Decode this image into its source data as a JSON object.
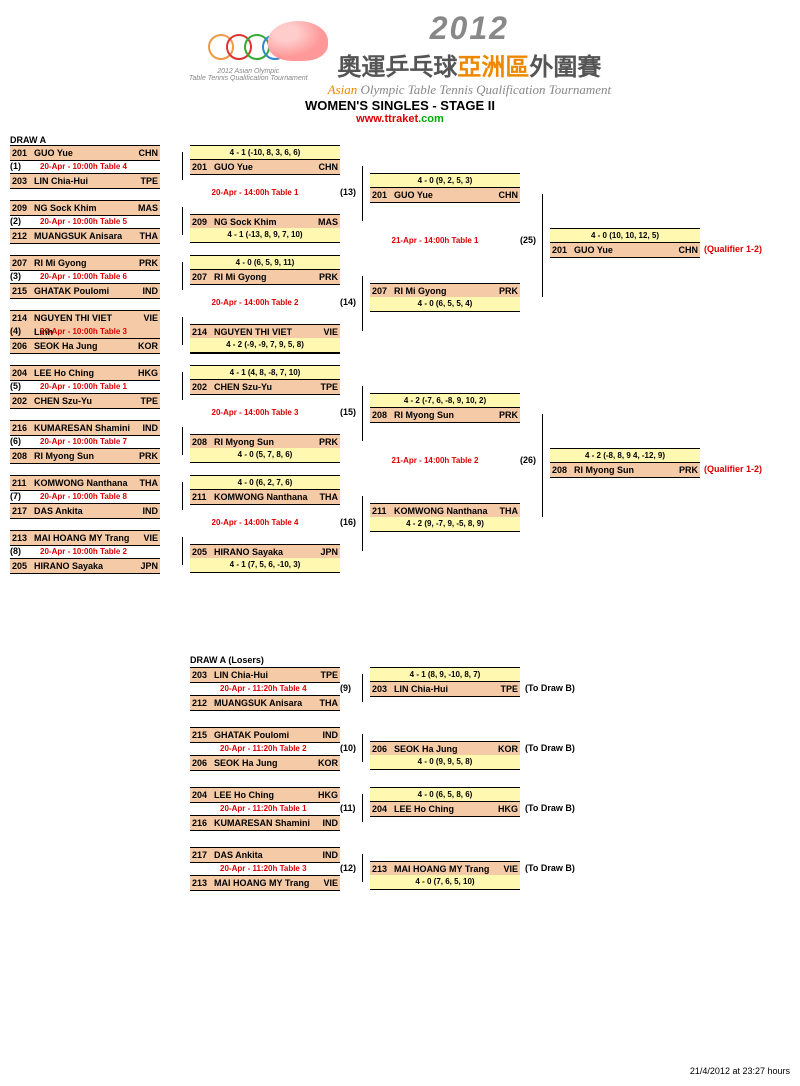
{
  "event": {
    "year": "2012",
    "cn": "奧運乒乓球",
    "asia": "亞洲區",
    "cn2": "外圍賽",
    "sub1": "Asian",
    "sub2": " Olympic Table Tennis Qualification Tournament",
    "title": "WOMEN'S SINGLES - STAGE II",
    "url_w": "www.",
    "url_t": "ttraket",
    "url_c": ".com"
  },
  "drawA": "DRAW A",
  "r1": [
    {
      "top": {
        "n": "201",
        "name": "GUO Yue",
        "cc": "CHN"
      },
      "bot": {
        "n": "203",
        "name": "LIN Chia-Hui",
        "cc": "TPE"
      },
      "s": "20-Apr - 10:00h Table 4",
      "m": "(1)"
    },
    {
      "top": {
        "n": "209",
        "name": "NG Sock Khim",
        "cc": "MAS"
      },
      "bot": {
        "n": "212",
        "name": "MUANGSUK Anisara",
        "cc": "THA"
      },
      "s": "20-Apr - 10:00h Table 5",
      "m": "(2)"
    },
    {
      "top": {
        "n": "207",
        "name": "RI Mi Gyong",
        "cc": "PRK"
      },
      "bot": {
        "n": "215",
        "name": "GHATAK Poulomi",
        "cc": "IND"
      },
      "s": "20-Apr - 10:00h Table 6",
      "m": "(3)"
    },
    {
      "top": {
        "n": "214",
        "name": "NGUYEN THI VIET Linh",
        "cc": "VIE"
      },
      "bot": {
        "n": "206",
        "name": "SEOK Ha Jung",
        "cc": "KOR"
      },
      "s": "20-Apr - 10:00h Table 3",
      "m": "(4)"
    },
    {
      "top": {
        "n": "204",
        "name": "LEE Ho Ching",
        "cc": "HKG"
      },
      "bot": {
        "n": "202",
        "name": "CHEN Szu-Yu",
        "cc": "TPE"
      },
      "s": "20-Apr - 10:00h Table 1",
      "m": "(5)"
    },
    {
      "top": {
        "n": "216",
        "name": "KUMARESAN Shamini",
        "cc": "IND"
      },
      "bot": {
        "n": "208",
        "name": "RI Myong Sun",
        "cc": "PRK"
      },
      "s": "20-Apr - 10:00h Table 7",
      "m": "(6)"
    },
    {
      "top": {
        "n": "211",
        "name": "KOMWONG Nanthana",
        "cc": "THA"
      },
      "bot": {
        "n": "217",
        "name": "DAS Ankita",
        "cc": "IND"
      },
      "s": "20-Apr - 10:00h Table 8",
      "m": "(7)"
    },
    {
      "top": {
        "n": "213",
        "name": "MAI HOANG MY Trang",
        "cc": "VIE"
      },
      "bot": {
        "n": "205",
        "name": "HIRANO Sayaka",
        "cc": "JPN"
      },
      "s": "20-Apr - 10:00h Table 2",
      "m": "(8)"
    }
  ],
  "r2": [
    {
      "sc": "4 - 1  (-10, 8, 3, 6, 6)",
      "p": {
        "n": "201",
        "name": "GUO Yue",
        "cc": "CHN"
      },
      "bot": {
        "n": "209",
        "name": "NG Sock Khim",
        "cc": "MAS"
      },
      "sc2": "4 - 1  (-13, 8, 9, 7, 10)",
      "s": "20-Apr - 14:00h Table 1",
      "m": "(13)"
    },
    {
      "sc": "4 - 0  (6, 5, 9, 11)",
      "p": {
        "n": "207",
        "name": "RI Mi Gyong",
        "cc": "PRK"
      },
      "bot": {
        "n": "214",
        "name": "NGUYEN THI VIET Linh",
        "cc": "VIE"
      },
      "sc2": "4 - 2  (-9, -9, 7, 9, 5, 8)",
      "s": "20-Apr - 14:00h Table 2",
      "m": "(14)"
    },
    {
      "sc": "4 - 1  (4, 8, -8, 7, 10)",
      "p": {
        "n": "202",
        "name": "CHEN Szu-Yu",
        "cc": "TPE"
      },
      "bot": {
        "n": "208",
        "name": "RI Myong Sun",
        "cc": "PRK"
      },
      "sc2": "4 - 0  (5, 7, 8, 6)",
      "s": "20-Apr - 14:00h Table 3",
      "m": "(15)"
    },
    {
      "sc": "4 - 0  (6, 2, 7, 6)",
      "p": {
        "n": "211",
        "name": "KOMWONG Nanthana",
        "cc": "THA"
      },
      "bot": {
        "n": "205",
        "name": "HIRANO Sayaka",
        "cc": "JPN"
      },
      "sc2": "4 - 1  (7, 5, 6, -10, 3)",
      "s": "20-Apr - 14:00h Table 4",
      "m": "(16)"
    }
  ],
  "r3": [
    {
      "sc": "4 - 0  (9, 2, 5, 3)",
      "p": {
        "n": "201",
        "name": "GUO Yue",
        "cc": "CHN"
      },
      "bot": {
        "n": "207",
        "name": "RI Mi Gyong",
        "cc": "PRK"
      },
      "sc2": "4 - 0  (6, 5, 5, 4)",
      "s": "21-Apr - 14:00h Table 1",
      "m": "(25)"
    },
    {
      "sc": "4 - 2  (-7, 6, -8, 9, 10, 2)",
      "p": {
        "n": "208",
        "name": "RI Myong Sun",
        "cc": "PRK"
      },
      "bot": {
        "n": "211",
        "name": "KOMWONG Nanthana",
        "cc": "THA"
      },
      "sc2": "4 - 2  (9, -7, 9, -5, 8, 9)",
      "s": "21-Apr - 14:00h Table 2",
      "m": "(26)"
    }
  ],
  "r4": [
    {
      "sc": "4 - 0 (10, 10, 12, 5)",
      "p": {
        "n": "201",
        "name": "GUO Yue",
        "cc": "CHN"
      },
      "q": "(Qualifier 1-2)"
    },
    {
      "sc": "4 - 2 (-8, 8, 9 4, -12, 9)",
      "p": {
        "n": "208",
        "name": "RI Myong Sun",
        "cc": "PRK"
      },
      "q": "(Qualifier 1-2)"
    }
  ],
  "losersTitle": "DRAW A (Losers)",
  "losers": [
    {
      "top": {
        "n": "203",
        "name": "LIN Chia-Hui",
        "cc": "TPE"
      },
      "bot": {
        "n": "212",
        "name": "MUANGSUK Anisara",
        "cc": "THA"
      },
      "s": "20-Apr - 11:20h Table 4",
      "m": "(9)",
      "sc": "4 - 1  (8, 9, -10, 8, 7)",
      "w": {
        "n": "203",
        "name": "LIN Chia-Hui",
        "cc": "TPE"
      },
      "to": "(To Draw B)"
    },
    {
      "top": {
        "n": "215",
        "name": "GHATAK Poulomi",
        "cc": "IND"
      },
      "bot": {
        "n": "206",
        "name": "SEOK Ha Jung",
        "cc": "KOR"
      },
      "s": "20-Apr - 11:20h Table 2",
      "m": "(10)",
      "sc": "4 - 0  (9, 9, 5, 8)",
      "w": {
        "n": "206",
        "name": "SEOK Ha Jung",
        "cc": "KOR"
      },
      "to": "(To Draw B)",
      "scbot": true
    },
    {
      "top": {
        "n": "204",
        "name": "LEE Ho Ching",
        "cc": "HKG"
      },
      "bot": {
        "n": "216",
        "name": "KUMARESAN Shamini",
        "cc": "IND"
      },
      "s": "20-Apr - 11:20h Table 1",
      "m": "(11)",
      "sc": "4 - 0  (6, 5, 8, 6)",
      "w": {
        "n": "204",
        "name": "LEE Ho Ching",
        "cc": "HKG"
      },
      "to": "(To Draw B)"
    },
    {
      "top": {
        "n": "217",
        "name": "DAS Ankita",
        "cc": "IND"
      },
      "bot": {
        "n": "213",
        "name": "MAI HOANG MY Trang",
        "cc": "VIE"
      },
      "s": "20-Apr - 11:20h Table 3",
      "m": "(12)",
      "sc": "4 - 0  (7, 6, 5, 10)",
      "w": {
        "n": "213",
        "name": "MAI HOANG MY Trang",
        "cc": "VIE"
      },
      "to": "(To Draw B)",
      "scbot": true
    }
  ],
  "footer": "21/4/2012 at 23:27 hours"
}
